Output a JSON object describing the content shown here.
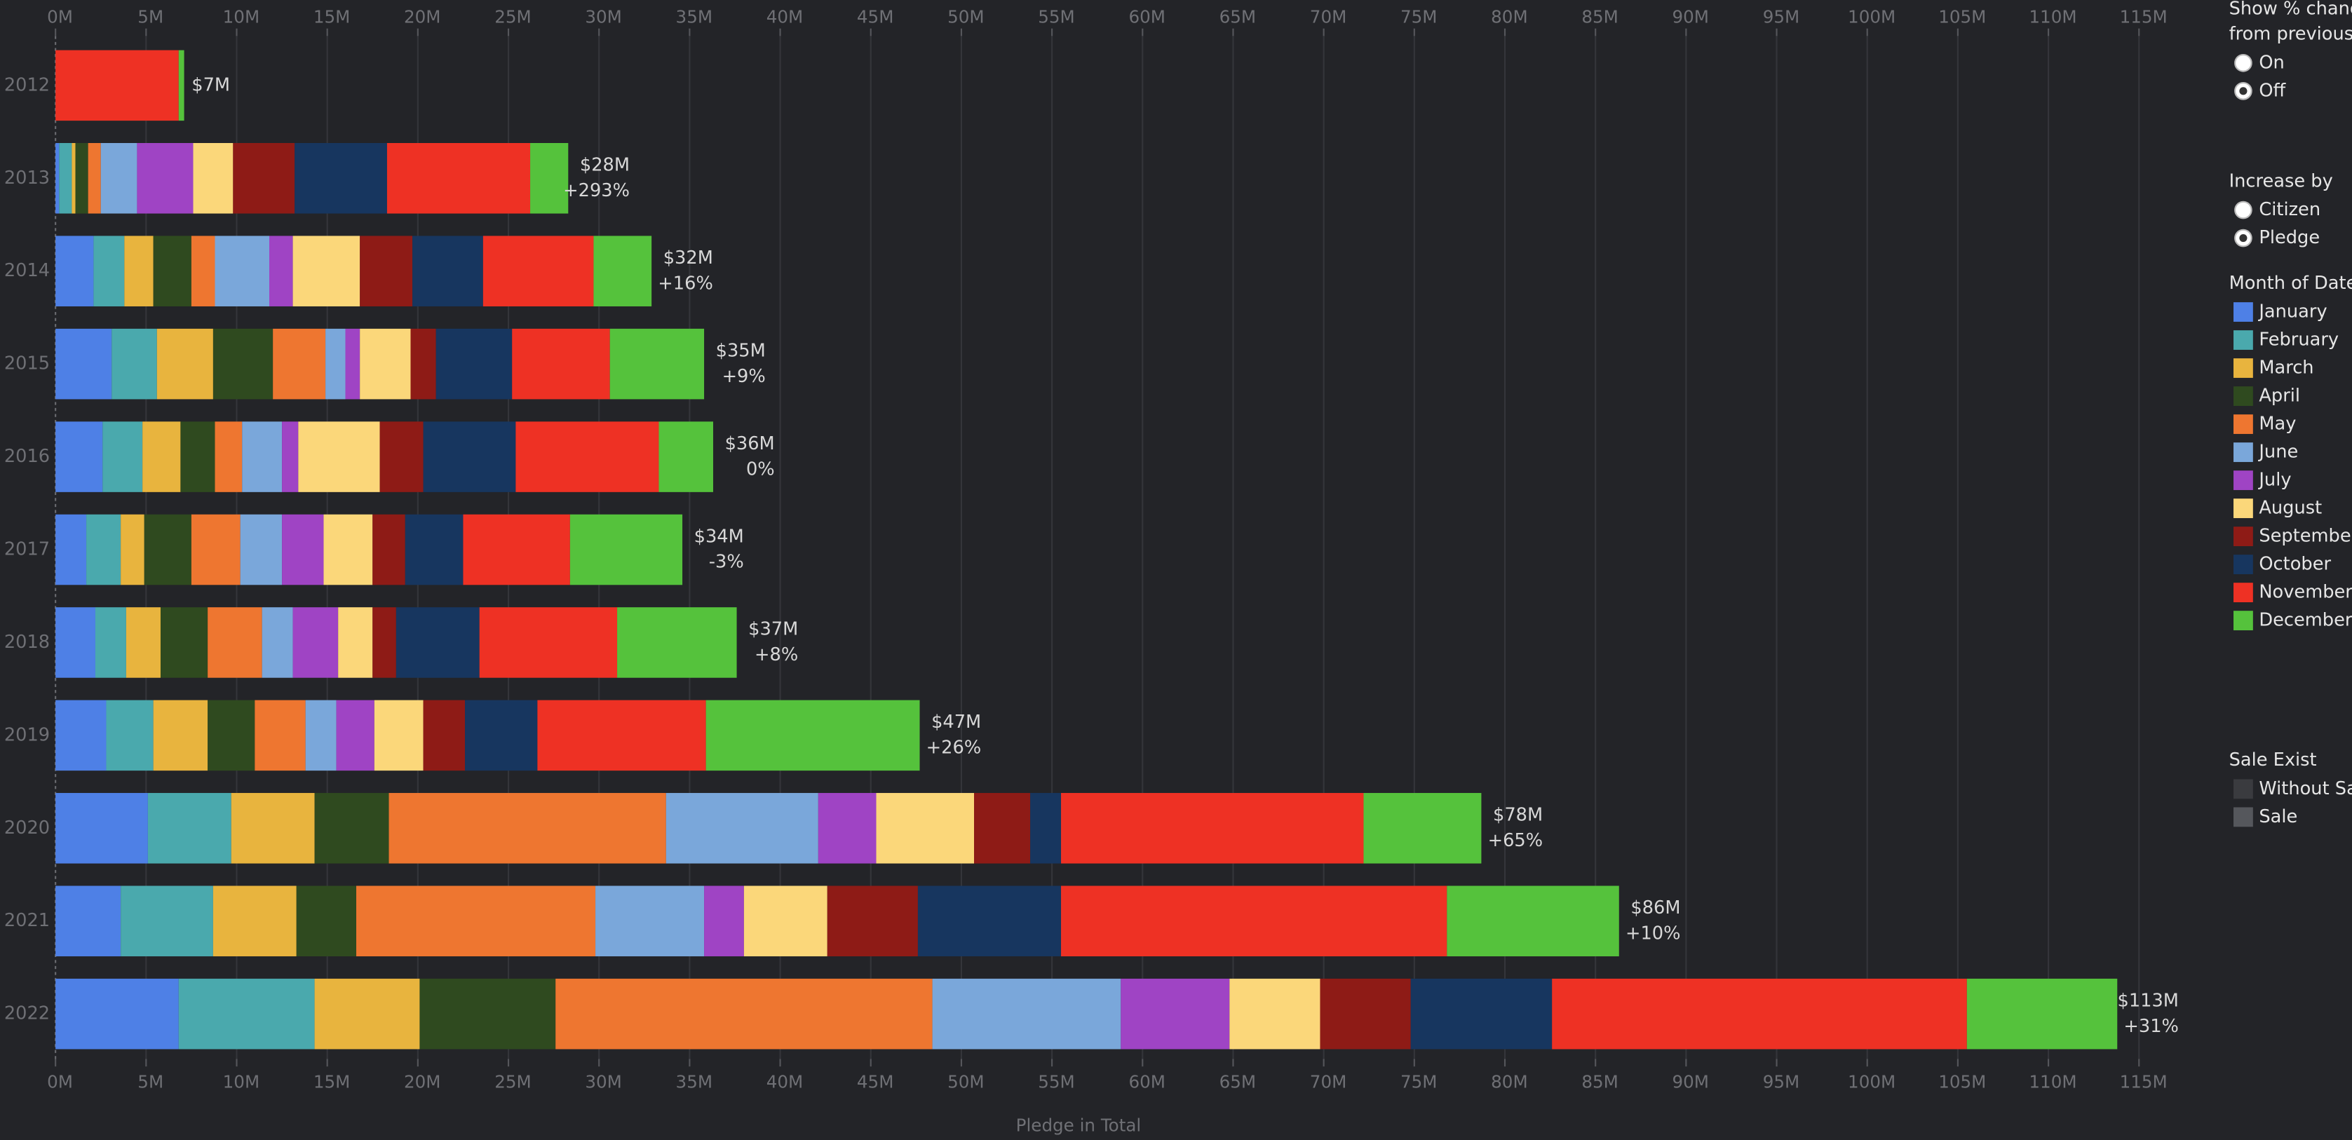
{
  "chart_data": {
    "type": "stacked_bar_horizontal",
    "categories": [
      "2012",
      "2013",
      "2014",
      "2015",
      "2016",
      "2017",
      "2018",
      "2019",
      "2020",
      "2021",
      "2022"
    ],
    "series": [
      {
        "name": "January",
        "color": "#4e80e6",
        "values": [
          0,
          0.2,
          2.1,
          3.1,
          2.6,
          1.7,
          2.2,
          2.8,
          5.1,
          3.6,
          6.8
        ]
      },
      {
        "name": "February",
        "color": "#4aa9ad",
        "values": [
          0,
          0.7,
          1.7,
          2.5,
          2.2,
          1.9,
          1.7,
          2.6,
          4.6,
          5.1,
          7.5
        ]
      },
      {
        "name": "March",
        "color": "#e8b43e",
        "values": [
          0,
          0.2,
          1.6,
          3.1,
          2.1,
          1.3,
          1.9,
          3.0,
          4.6,
          4.6,
          5.8
        ]
      },
      {
        "name": "April",
        "color": "#2f4a1f",
        "values": [
          0,
          0.7,
          2.1,
          3.3,
          1.9,
          2.6,
          2.6,
          2.6,
          4.1,
          3.3,
          7.5
        ]
      },
      {
        "name": "May",
        "color": "#ee7630",
        "values": [
          0,
          0.7,
          1.3,
          2.9,
          1.5,
          2.7,
          3.0,
          2.8,
          15.3,
          13.2,
          20.8
        ]
      },
      {
        "name": "June",
        "color": "#7aa7da",
        "values": [
          0,
          2.0,
          3.0,
          1.1,
          2.2,
          2.3,
          1.7,
          1.7,
          8.4,
          6.0,
          10.4
        ]
      },
      {
        "name": "July",
        "color": "#9f44c4",
        "values": [
          0,
          3.1,
          1.3,
          0.8,
          0.9,
          2.3,
          2.5,
          2.1,
          3.2,
          2.2,
          6.0
        ]
      },
      {
        "name": "August",
        "color": "#fbd77a",
        "values": [
          0,
          2.2,
          3.7,
          2.8,
          4.5,
          2.7,
          1.9,
          2.7,
          5.4,
          4.6,
          5.0
        ]
      },
      {
        "name": "September",
        "color": "#8e1b16",
        "values": [
          0,
          3.4,
          2.9,
          1.4,
          2.4,
          1.8,
          1.3,
          2.3,
          3.1,
          5.0,
          5.0
        ]
      },
      {
        "name": "October",
        "color": "#17365f",
        "values": [
          0,
          5.1,
          3.9,
          4.2,
          5.1,
          3.2,
          4.6,
          4.0,
          1.7,
          7.9,
          7.8
        ]
      },
      {
        "name": "November",
        "color": "#ee3124",
        "values": [
          6.8,
          7.9,
          6.1,
          5.4,
          7.9,
          5.9,
          7.6,
          9.3,
          16.7,
          21.3,
          22.9
        ]
      },
      {
        "name": "December",
        "color": "#55c23c",
        "values": [
          0.3,
          2.1,
          3.2,
          5.2,
          3.0,
          6.2,
          6.6,
          11.8,
          6.5,
          9.5,
          8.3
        ]
      }
    ],
    "annotations": [
      {
        "total": "$7M"
      },
      {
        "total": "$28M",
        "change": "+293%"
      },
      {
        "total": "$32M",
        "change": "+16%"
      },
      {
        "total": "$35M",
        "change": "+9%"
      },
      {
        "total": "$36M",
        "change": "0%"
      },
      {
        "total": "$34M",
        "change": "-3%"
      },
      {
        "total": "$37M",
        "change": "+8%"
      },
      {
        "total": "$47M",
        "change": "+26%"
      },
      {
        "total": "$78M",
        "change": "+65%"
      },
      {
        "total": "$86M",
        "change": "+10%"
      },
      {
        "total": "$113M",
        "change": "+31%"
      }
    ],
    "xlim": [
      0,
      115
    ],
    "xticks": [
      {
        "value": 0,
        "label": "0M"
      },
      {
        "value": 5,
        "label": "5M"
      },
      {
        "value": 10,
        "label": "10M"
      },
      {
        "value": 15,
        "label": "15M"
      },
      {
        "value": 20,
        "label": "20M"
      },
      {
        "value": 25,
        "label": "25M"
      },
      {
        "value": 30,
        "label": "30M"
      },
      {
        "value": 35,
        "label": "35M"
      },
      {
        "value": 40,
        "label": "40M"
      },
      {
        "value": 45,
        "label": "45M"
      },
      {
        "value": 50,
        "label": "50M"
      },
      {
        "value": 55,
        "label": "55M"
      },
      {
        "value": 60,
        "label": "60M"
      },
      {
        "value": 65,
        "label": "65M"
      },
      {
        "value": 70,
        "label": "70M"
      },
      {
        "value": 75,
        "label": "75M"
      },
      {
        "value": 80,
        "label": "80M"
      },
      {
        "value": 85,
        "label": "85M"
      },
      {
        "value": 90,
        "label": "90M"
      },
      {
        "value": 95,
        "label": "95M"
      },
      {
        "value": 100,
        "label": "100M"
      },
      {
        "value": 105,
        "label": "105M"
      },
      {
        "value": 110,
        "label": "110M"
      },
      {
        "value": 115,
        "label": "115M"
      }
    ],
    "x_label": "Pledge in Total",
    "grid": true,
    "legend_title": "Month of Date ("
  },
  "controls": {
    "percent_change": {
      "title_lines": [
        "Show % change",
        "from previous y"
      ],
      "options": [
        "On",
        "Off"
      ],
      "selected": 1
    },
    "increase_by": {
      "title": "Increase by",
      "options": [
        "Citizen",
        "Pledge"
      ],
      "selected": 1
    },
    "sale_exist": {
      "title": "Sale Exist",
      "items": [
        {
          "name": "Without Sal",
          "color": "#3a3b3f"
        },
        {
          "name": "Sale",
          "color": "#55575c"
        }
      ]
    }
  }
}
